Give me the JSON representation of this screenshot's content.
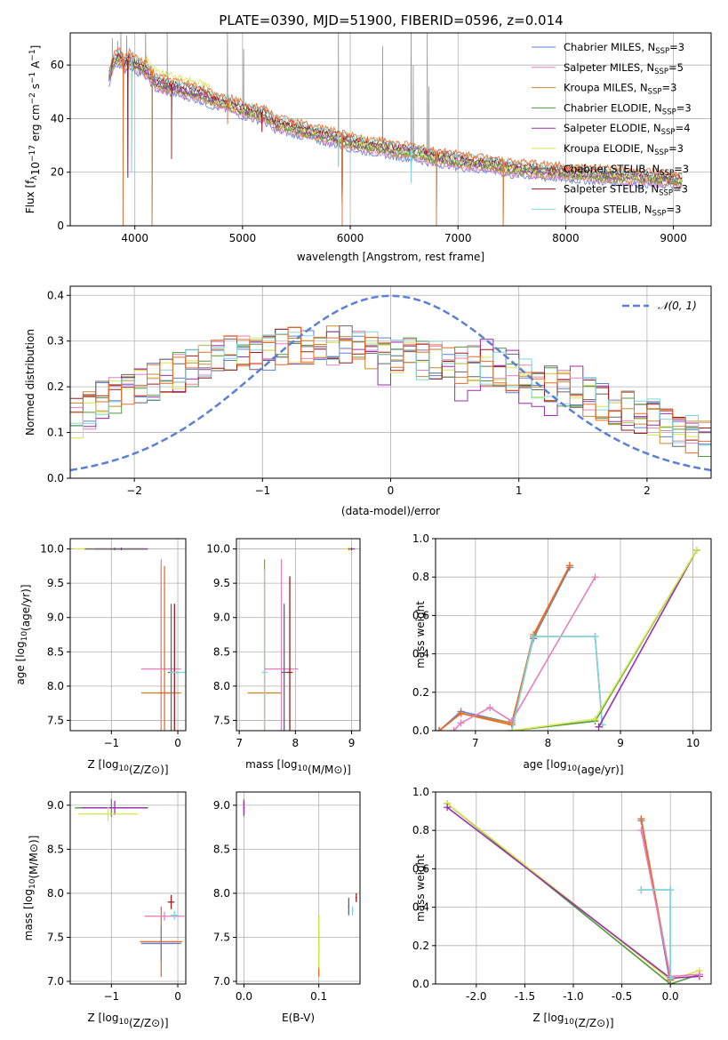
{
  "figure_title": "PLATE=0390, MJD=51900, FIBERID=0596, z=0.014",
  "colors": {
    "Chabrier MILES": "#5b80d4",
    "Salpeter MILES": "#e87fbf",
    "Kroupa MILES": "#c78a2a",
    "Chabrier ELODIE": "#4e9a3e",
    "Salpeter ELODIE": "#9b2fae",
    "Kroupa ELODIE": "#d6e64a",
    "Chabrier STELIB": "#666666",
    "Salpeter STELIB": "#a11b1b",
    "Kroupa STELIB": "#7fd6dc",
    "extra orange": "#ef6a25",
    "normal curve": "#5b80d4"
  },
  "chart_data": [
    {
      "type": "line",
      "title": "PLATE=0390, MJD=51900, FIBERID=0596, z=0.014",
      "xlabel": "wavelength [Angstrom, rest frame]",
      "ylabel_parts": [
        "Flux [f",
        "λ",
        "10",
        "−17",
        " erg cm",
        "−2",
        " s",
        "−1",
        " A",
        "−1",
        "]"
      ],
      "xlim": [
        3400,
        9350
      ],
      "ylim": [
        0,
        72
      ],
      "xticks": [
        4000,
        5000,
        6000,
        7000,
        8000,
        9000
      ],
      "yticks": [
        0,
        20,
        40,
        60
      ],
      "legend_position": "upper right",
      "legend": [
        {
          "label": "Chabrier MILES, N",
          "sub": "SSP",
          "value": "=3"
        },
        {
          "label": "Salpeter MILES, N",
          "sub": "SSP",
          "value": "=5"
        },
        {
          "label": "Kroupa MILES, N",
          "sub": "SSP",
          "value": "=3"
        },
        {
          "label": "Chabrier ELODIE, N",
          "sub": "SSP",
          "value": "=3"
        },
        {
          "label": "Salpeter ELODIE, N",
          "sub": "SSP",
          "value": "=4"
        },
        {
          "label": "Kroupa ELODIE, N",
          "sub": "SSP",
          "value": "=3"
        },
        {
          "label": "Chabrier STELIB, N",
          "sub": "SSP",
          "value": "=3"
        },
        {
          "label": "Salpeter STELIB, N",
          "sub": "SSP",
          "value": "=3"
        },
        {
          "label": "Kroupa STELIB, N",
          "sub": "SSP",
          "value": "=3"
        }
      ],
      "continuum": [
        [
          3760,
          55
        ],
        [
          3800,
          61
        ],
        [
          3850,
          63
        ],
        [
          3900,
          60
        ],
        [
          3950,
          62
        ],
        [
          4000,
          60
        ],
        [
          4100,
          58
        ],
        [
          4200,
          53
        ],
        [
          4300,
          52
        ],
        [
          4400,
          51
        ],
        [
          4500,
          50
        ],
        [
          4600,
          49
        ],
        [
          4700,
          47
        ],
        [
          4800,
          46
        ],
        [
          4900,
          45
        ],
        [
          5000,
          43
        ],
        [
          5100,
          42
        ],
        [
          5200,
          41
        ],
        [
          5300,
          38
        ],
        [
          5400,
          37
        ],
        [
          5500,
          36
        ],
        [
          5600,
          35
        ],
        [
          5700,
          34
        ],
        [
          5800,
          33
        ],
        [
          5900,
          32
        ],
        [
          6000,
          31
        ],
        [
          6100,
          30
        ],
        [
          6200,
          29.5
        ],
        [
          6300,
          29
        ],
        [
          6400,
          28
        ],
        [
          6500,
          27.5
        ],
        [
          6600,
          27
        ],
        [
          6700,
          26
        ],
        [
          6800,
          25
        ],
        [
          6900,
          25
        ],
        [
          7000,
          24
        ],
        [
          7100,
          23.5
        ],
        [
          7200,
          23
        ],
        [
          7300,
          23
        ],
        [
          7400,
          22
        ],
        [
          7500,
          21
        ],
        [
          7600,
          21
        ],
        [
          7700,
          20.5
        ],
        [
          7800,
          20
        ],
        [
          7900,
          20
        ],
        [
          8000,
          19.5
        ],
        [
          8200,
          19
        ],
        [
          8400,
          18.5
        ],
        [
          8600,
          18
        ],
        [
          8800,
          17.5
        ],
        [
          9000,
          17
        ],
        [
          9080,
          16.5
        ]
      ],
      "dips": [
        [
          3890,
          0
        ],
        [
          3935,
          18
        ],
        [
          3970,
          20
        ],
        [
          4160,
          0
        ],
        [
          4340,
          25
        ],
        [
          4860,
          38
        ],
        [
          5180,
          35
        ],
        [
          5890,
          22
        ],
        [
          5925,
          0
        ],
        [
          6565,
          16
        ],
        [
          6800,
          0
        ],
        [
          7420,
          0
        ]
      ],
      "emission_lines": [
        [
          3790,
          70
        ],
        [
          3840,
          69
        ],
        [
          3870,
          72
        ],
        [
          3925,
          71
        ],
        [
          4100,
          72
        ],
        [
          4300,
          72
        ],
        [
          4860,
          72
        ],
        [
          5010,
          66
        ],
        [
          5890,
          72
        ],
        [
          6300,
          67
        ],
        [
          6565,
          72
        ],
        [
          6585,
          60
        ],
        [
          6715,
          72
        ],
        [
          6730,
          52
        ]
      ]
    },
    {
      "type": "histogram",
      "xlabel": "(data-model)/error",
      "ylabel": "Normed distribution",
      "xlim": [
        -2.5,
        2.5
      ],
      "ylim": [
        0,
        0.42
      ],
      "xticks": [
        -2,
        -1,
        0,
        1,
        2
      ],
      "yticks": [
        0.0,
        0.1,
        0.2,
        0.3,
        0.4
      ],
      "bin_width": 0.1,
      "curve_label": "𝒩(0, 1)",
      "curve": {
        "mean": 0,
        "std": 1
      },
      "legend_position": "upper right",
      "base_profile": [
        0.13,
        0.15,
        0.17,
        0.18,
        0.19,
        0.2,
        0.21,
        0.22,
        0.23,
        0.24,
        0.25,
        0.26,
        0.27,
        0.27,
        0.28,
        0.28,
        0.29,
        0.29,
        0.29,
        0.29,
        0.29,
        0.29,
        0.28,
        0.28,
        0.28,
        0.27,
        0.27,
        0.26,
        0.26,
        0.25,
        0.25,
        0.25,
        0.24,
        0.24,
        0.23,
        0.23,
        0.22,
        0.21,
        0.2,
        0.19,
        0.18,
        0.17,
        0.16,
        0.15,
        0.14,
        0.13,
        0.12,
        0.11,
        0.1,
        0.09,
        0.08,
        0.08,
        0.07,
        0.07,
        0.06,
        0.06,
        0.05,
        0.05,
        0.04,
        0.04,
        0.04,
        0.03,
        0.03,
        0.03,
        0.03,
        0.02,
        0.02,
        0.02,
        0.02,
        0.02,
        0.02,
        0.02,
        0.02,
        0.02,
        0.02,
        0.02,
        0.02,
        0.02,
        0.02,
        0.02,
        0.02,
        0.02,
        0.02,
        0.02,
        0.02,
        0.02,
        0.02,
        0.02,
        0.02,
        0.02,
        0.02,
        0.02,
        0.02,
        0.02,
        0.02,
        0.02,
        0.02,
        0.02,
        0.02,
        0.02
      ]
    },
    {
      "type": "scatter",
      "xlabel": "Z [log10(Z/Z⊙)]",
      "ylabel": "age  [log10(age/yr)]",
      "xlim": [
        -1.62,
        0.12
      ],
      "ylim": [
        7.35,
        10.15
      ],
      "xticks": [
        -1,
        0
      ],
      "yticks": [
        7.5,
        8.0,
        8.5,
        9.0,
        9.5,
        10.0
      ],
      "points": [
        {
          "s": "Kroupa ELODIE",
          "x": -1.0,
          "y": 10.0,
          "xe": 0.55,
          "ye": 0.03
        },
        {
          "s": "Salpeter ELODIE",
          "x": -0.85,
          "y": 10.0,
          "xe": 0.4,
          "ye": 0.02
        },
        {
          "s": "Chabrier STELIB",
          "x": -0.95,
          "y": 10.0,
          "xe": 0.45,
          "ye": 0.02
        },
        {
          "s": "Kroupa MILES",
          "x": -0.25,
          "y": 7.9,
          "xe": 0.3,
          "ye": 1.85
        },
        {
          "s": "Salpeter MILES",
          "x": -0.25,
          "y": 8.25,
          "xe": 0.3,
          "ye": 1.6
        },
        {
          "s": "extra orange",
          "x": -0.2,
          "y": 7.9,
          "xe": 0.08,
          "ye": 1.85
        },
        {
          "s": "Chabrier STELIB",
          "x": -0.1,
          "y": 8.2,
          "xe": 0.05,
          "ye": 1.0
        },
        {
          "s": "Salpeter STELIB",
          "x": -0.05,
          "y": 8.2,
          "xe": 0.05,
          "ye": 1.0
        },
        {
          "s": "Kroupa STELIB",
          "x": 0.0,
          "y": 8.2,
          "xe": 0.12,
          "ye": 0.02
        }
      ]
    },
    {
      "type": "scatter",
      "xlabel": "mass [log10(M/M⊙)]",
      "ylabel": "",
      "xlim": [
        6.95,
        9.15
      ],
      "ylim": [
        7.35,
        10.15
      ],
      "xticks": [
        7,
        8,
        9
      ],
      "yticks": [
        7.5,
        8.0,
        8.5,
        9.0,
        9.5,
        10.0
      ],
      "points": [
        {
          "s": "Kroupa ELODIE",
          "x": 8.95,
          "y": 10.0,
          "xe": 0.08,
          "ye": 0.03
        },
        {
          "s": "Salpeter ELODIE",
          "x": 9.0,
          "y": 10.0,
          "xe": 0.06,
          "ye": 0.02
        },
        {
          "s": "Kroupa MILES",
          "x": 7.45,
          "y": 7.9,
          "xe": 0.3,
          "ye": 1.95
        },
        {
          "s": "Salpeter MILES",
          "x": 7.75,
          "y": 8.25,
          "xe": 0.3,
          "ye": 1.6
        },
        {
          "s": "Chabrier STELIB",
          "x": 7.8,
          "y": 8.2,
          "xe": 0.05,
          "ye": 1.0
        },
        {
          "s": "Salpeter STELIB",
          "x": 7.9,
          "y": 8.2,
          "xe": 0.05,
          "ye": 1.4
        },
        {
          "s": "Kroupa STELIB",
          "x": 7.45,
          "y": 8.2,
          "xe": 0.05,
          "ye": 1.5
        }
      ]
    },
    {
      "type": "line",
      "xlabel": "age  [log10(age/yr)]",
      "ylabel": "mass weight",
      "xlim": [
        6.45,
        10.25
      ],
      "ylim": [
        0,
        1.0
      ],
      "xticks": [
        7,
        8,
        9,
        10
      ],
      "yticks": [
        0.0,
        0.2,
        0.4,
        0.6,
        0.8,
        1.0
      ],
      "series": [
        {
          "s": "Chabrier MILES",
          "x": [
            6.5,
            6.8,
            7.5,
            7.8,
            8.3
          ],
          "y": [
            0.0,
            0.1,
            0.04,
            0.48,
            0.85
          ]
        },
        {
          "s": "Kroupa MILES",
          "x": [
            6.5,
            6.8,
            7.5,
            7.8,
            8.3
          ],
          "y": [
            0.0,
            0.09,
            0.04,
            0.49,
            0.86
          ]
        },
        {
          "s": "extra orange",
          "x": [
            6.5,
            6.8,
            7.5,
            7.8,
            8.3
          ],
          "y": [
            0.0,
            0.09,
            0.03,
            0.5,
            0.86
          ]
        },
        {
          "s": "Salpeter MILES",
          "x": [
            6.7,
            6.8,
            7.2,
            7.5,
            8.65
          ],
          "y": [
            0.0,
            0.04,
            0.12,
            0.05,
            0.8
          ]
        },
        {
          "s": "Chabrier STELIB",
          "x": [
            7.5,
            7.8,
            8.65,
            8.75
          ],
          "y": [
            0.0,
            0.49,
            0.49,
            0.03
          ]
        },
        {
          "s": "Kroupa STELIB",
          "x": [
            7.5,
            7.8,
            8.65,
            8.75
          ],
          "y": [
            0.0,
            0.49,
            0.49,
            0.03
          ]
        },
        {
          "s": "Salpeter ELODIE",
          "x": [
            8.7,
            10.05
          ],
          "y": [
            0.02,
            0.94
          ]
        },
        {
          "s": "Chabrier ELODIE",
          "x": [
            7.5,
            8.65,
            10.05
          ],
          "y": [
            0.0,
            0.05,
            0.94
          ]
        },
        {
          "s": "Kroupa ELODIE",
          "x": [
            7.5,
            8.65,
            10.05
          ],
          "y": [
            0.0,
            0.06,
            0.94
          ]
        }
      ]
    },
    {
      "type": "scatter",
      "xlabel": "Z [log10(Z/Z⊙)]",
      "ylabel": "mass [log10(M/M⊙)]",
      "xlim": [
        -1.62,
        0.12
      ],
      "ylim": [
        6.97,
        9.15
      ],
      "xticks": [
        -1,
        0
      ],
      "yticks": [
        7.0,
        7.5,
        8.0,
        8.5,
        9.0
      ],
      "points": [
        {
          "s": "Chabrier ELODIE",
          "x": -1.0,
          "y": 8.97,
          "xe": 0.55,
          "ye": 0.1
        },
        {
          "s": "Salpeter ELODIE",
          "x": -0.95,
          "y": 8.97,
          "xe": 0.5,
          "ye": 0.08
        },
        {
          "s": "Kroupa ELODIE",
          "x": -1.05,
          "y": 8.9,
          "xe": 0.45,
          "ye": 0.08
        },
        {
          "s": "extra orange",
          "x": -0.25,
          "y": 7.45,
          "xe": 0.32,
          "ye": 0.4
        },
        {
          "s": "Chabrier MILES",
          "x": -0.25,
          "y": 7.43,
          "xe": 0.3,
          "ye": 0.2
        },
        {
          "s": "Salpeter MILES",
          "x": -0.2,
          "y": 7.74,
          "xe": 0.3,
          "ye": 0.05
        },
        {
          "s": "Salpeter STELIB",
          "x": -0.1,
          "y": 7.9,
          "xe": 0.05,
          "ye": 0.08
        },
        {
          "s": "Kroupa STELIB",
          "x": -0.05,
          "y": 7.75,
          "xe": 0.06,
          "ye": 0.05
        }
      ]
    },
    {
      "type": "scatter",
      "xlabel": "E(B-V)",
      "ylabel": "",
      "xlim": [
        -0.01,
        0.155
      ],
      "ylim": [
        6.97,
        9.15
      ],
      "xticks": [
        0.0,
        0.1
      ],
      "yticks": [
        7.0,
        7.5,
        8.0,
        8.5,
        9.0
      ],
      "points": [
        {
          "s": "Chabrier ELODIE",
          "x": 0.0,
          "y": 8.97,
          "xe": 0.001,
          "ye": 0.1
        },
        {
          "s": "Salpeter ELODIE",
          "x": 0.0,
          "y": 8.97,
          "xe": 0.001,
          "ye": 0.08
        },
        {
          "s": "extra orange",
          "x": 0.1,
          "y": 7.4,
          "xe": 0.001,
          "ye": 0.35
        },
        {
          "s": "Kroupa ELODIE",
          "x": 0.1,
          "y": 7.45,
          "xe": 0.001,
          "ye": 0.3
        },
        {
          "s": "Chabrier STELIB",
          "x": 0.14,
          "y": 7.85,
          "xe": 0.001,
          "ye": 0.1
        },
        {
          "s": "Kroupa STELIB",
          "x": 0.145,
          "y": 7.8,
          "xe": 0.001,
          "ye": 0.05
        },
        {
          "s": "Salpeter STELIB",
          "x": 0.15,
          "y": 7.95,
          "xe": 0.001,
          "ye": 0.05
        }
      ]
    },
    {
      "type": "line",
      "xlabel": "Z [log10(Z/Z⊙)]",
      "ylabel": "mass weight",
      "xlim": [
        -2.42,
        0.42
      ],
      "ylim": [
        0,
        1.0
      ],
      "xticks": [
        -2.0,
        -1.5,
        -1.0,
        -0.5,
        0.0
      ],
      "yticks": [
        0.0,
        0.2,
        0.4,
        0.6,
        0.8,
        1.0
      ],
      "series": [
        {
          "s": "Chabrier ELODIE",
          "x": [
            -2.3,
            0.0,
            0.3
          ],
          "y": [
            0.94,
            0.0,
            0.05
          ]
        },
        {
          "s": "Kroupa ELODIE",
          "x": [
            -2.3,
            0.0,
            0.3
          ],
          "y": [
            0.94,
            0.02,
            0.07
          ]
        },
        {
          "s": "Salpeter ELODIE",
          "x": [
            -2.3,
            0.0,
            0.3
          ],
          "y": [
            0.92,
            0.03,
            0.04
          ]
        },
        {
          "s": "Chabrier MILES",
          "x": [
            -0.3,
            0.0
          ],
          "y": [
            0.85,
            0.0
          ]
        },
        {
          "s": "Kroupa MILES",
          "x": [
            -0.3,
            0.0
          ],
          "y": [
            0.86,
            0.03
          ]
        },
        {
          "s": "extra orange",
          "x": [
            -0.3,
            0.0
          ],
          "y": [
            0.86,
            0.02
          ]
        },
        {
          "s": "Salpeter MILES",
          "x": [
            -0.3,
            0.0,
            0.3
          ],
          "y": [
            0.8,
            0.04,
            0.05
          ]
        },
        {
          "s": "Chabrier STELIB",
          "x": [
            -0.3,
            0.0,
            0.0
          ],
          "y": [
            0.49,
            0.49,
            0.03
          ]
        },
        {
          "s": "Kroupa STELIB",
          "x": [
            -0.3,
            0.0,
            0.0
          ],
          "y": [
            0.49,
            0.49,
            0.03
          ]
        }
      ]
    }
  ]
}
